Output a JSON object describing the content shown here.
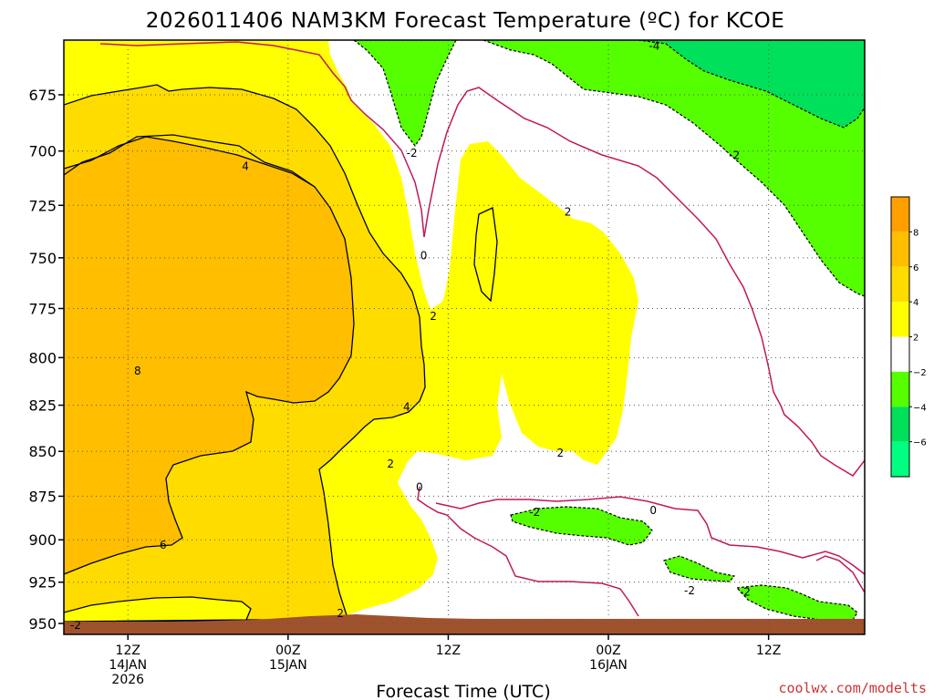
{
  "chart_data": {
    "type": "contour",
    "title": "2026011406 NAM3KM Forecast Temperature (ºC) for KCOE",
    "xlabel": "Forecast Time (UTC)",
    "ylabel": "",
    "y_axis": {
      "scale": "log",
      "range": [
        650,
        955
      ],
      "ticks": [
        "675",
        "700",
        "725",
        "750",
        "775",
        "800",
        "825",
        "850",
        "875",
        "900",
        "925",
        "950"
      ]
    },
    "x_axis": {
      "range_hours": [
        6,
        81
      ],
      "ticks": [
        {
          "hour": 12,
          "label": "12Z",
          "sub": "14JAN",
          "sub2": "2026"
        },
        {
          "hour": 27,
          "label": "00Z",
          "sub": "15JAN",
          "sub2": ""
        },
        {
          "hour": 42,
          "label": "12Z",
          "sub": "",
          "sub2": ""
        },
        {
          "hour": 57,
          "label": "00Z",
          "sub": "16JAN",
          "sub2": ""
        },
        {
          "hour": 72,
          "label": "12Z",
          "sub": "",
          "sub2": ""
        }
      ]
    },
    "grid": true,
    "colorbar": {
      "placement": "right",
      "labels": [
        "8",
        "6",
        "4",
        "2",
        "−2",
        "−4",
        "−6"
      ],
      "colors": [
        "#ffa000",
        "#ffbe00",
        "#ffdc00",
        "#ffff00",
        "#ffffff",
        "#55ff00",
        "#00e05a",
        "#00ff80"
      ]
    },
    "fill_colors": {
      "t8": "#ffa000",
      "t6": "#ffbe00",
      "t4": "#ffdc00",
      "t2": "#ffff00",
      "tm2": "#55ff00",
      "tm4": "#00e05a",
      "ground": "#a0522d"
    },
    "line_colors": {
      "positive": "#000000",
      "zero": "#c0185a",
      "negative_dashed": "#000000"
    },
    "contour_labels": [
      {
        "text": "-4",
        "hour": 61.3,
        "p": 654
      },
      {
        "text": "-2",
        "hour": 68.8,
        "p": 702
      },
      {
        "text": "-2",
        "hour": 38.6,
        "p": 701
      },
      {
        "text": "0",
        "hour": 39.7,
        "p": 749
      },
      {
        "text": "4",
        "hour": 23.0,
        "p": 707
      },
      {
        "text": "2",
        "hour": 53.2,
        "p": 728
      },
      {
        "text": "2",
        "hour": 40.6,
        "p": 779
      },
      {
        "text": "8",
        "hour": 12.9,
        "p": 807
      },
      {
        "text": "4",
        "hour": 38.1,
        "p": 826
      },
      {
        "text": "2",
        "hour": 36.6,
        "p": 857
      },
      {
        "text": "2",
        "hour": 52.5,
        "p": 851
      },
      {
        "text": "0",
        "hour": 39.3,
        "p": 870
      },
      {
        "text": "-2",
        "hour": 50.1,
        "p": 884
      },
      {
        "text": "0",
        "hour": 61.2,
        "p": 883
      },
      {
        "text": "6",
        "hour": 15.3,
        "p": 903
      },
      {
        "text": "-2",
        "hour": 64.6,
        "p": 930
      },
      {
        "text": "-2",
        "hour": 69.8,
        "p": 931
      },
      {
        "text": "2",
        "hour": 31.9,
        "p": 944
      },
      {
        "text": "-2",
        "hour": 7.1,
        "p": 951
      }
    ]
  },
  "credit": "coolwx.com/modelts"
}
